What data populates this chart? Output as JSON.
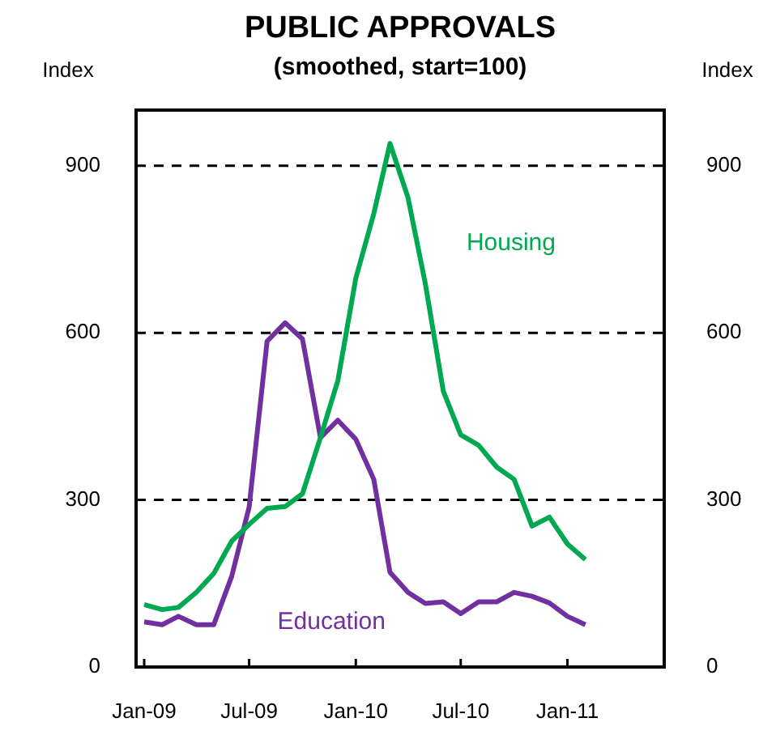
{
  "chart_data": {
    "type": "line",
    "title": "PUBLIC APPROVALS",
    "subtitle": "(smoothed, start=100)",
    "ylabel": "Index",
    "y2label": "Index",
    "x": [
      "2009-01-15",
      "2009-02-15",
      "2009-03-15",
      "2009-04-15",
      "2009-05-15",
      "2009-06-15",
      "2009-07-15",
      "2009-08-15",
      "2009-09-15",
      "2009-10-15",
      "2009-11-15",
      "2009-12-15",
      "2010-01-15",
      "2010-02-15",
      "2010-03-15",
      "2010-04-15",
      "2010-05-15",
      "2010-06-15",
      "2010-07-15",
      "2010-08-15",
      "2010-09-15",
      "2010-10-15",
      "2010-11-15",
      "2010-12-15",
      "2011-01-15",
      "2011-02-15"
    ],
    "series": [
      {
        "name": "Housing",
        "color": "#00a84f",
        "values": [
          112,
          103,
          107,
          134,
          168,
          226,
          256,
          285,
          288,
          311,
          412,
          514,
          698,
          814,
          940,
          843,
          688,
          495,
          417,
          398,
          359,
          337,
          253,
          269,
          221,
          193
        ]
      },
      {
        "name": "Education",
        "color": "#7030a0",
        "values": [
          81,
          76,
          91,
          76,
          76,
          163,
          287,
          585,
          618,
          589,
          412,
          443,
          409,
          337,
          170,
          134,
          114,
          117,
          96,
          117,
          117,
          134,
          127,
          115,
          91,
          76
        ]
      }
    ],
    "xlim": [
      "2009-01",
      "2011-07"
    ],
    "xticks": [
      {
        "value": "2009-01-15",
        "label": "Jan-09"
      },
      {
        "value": "2009-07-15",
        "label": "Jul-09"
      },
      {
        "value": "2010-01-15",
        "label": "Jan-10"
      },
      {
        "value": "2010-07-15",
        "label": "Jul-10"
      },
      {
        "value": "2011-01-15",
        "label": "Jan-11"
      }
    ],
    "ylim": [
      0,
      1000
    ],
    "yticks": [
      0,
      300,
      600,
      900
    ],
    "y2lim": [
      0,
      1000
    ],
    "y2ticks": [
      0,
      300,
      600,
      900
    ],
    "grid": "y",
    "legend": false,
    "marker": "none",
    "line_style": "solid"
  }
}
